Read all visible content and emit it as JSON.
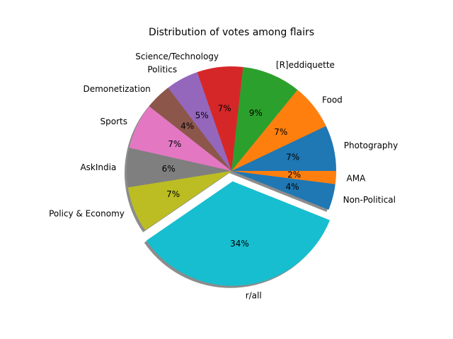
{
  "chart_data": {
    "type": "pie",
    "title": "Distribution of votes among flairs",
    "start_angle_deg": 0,
    "direction": "counterclockwise",
    "shadow": true,
    "explode": {
      "r/all": 0.1
    },
    "slices": [
      {
        "label": "Photography",
        "value": 7,
        "pct_label": "7%",
        "color": "#1f77b4"
      },
      {
        "label": "Food",
        "value": 7,
        "pct_label": "7%",
        "color": "#ff7f0e"
      },
      {
        "label": "[R]eddiquette",
        "value": 9,
        "pct_label": "9%",
        "color": "#2ca02c"
      },
      {
        "label": "Science/Technology",
        "value": 7,
        "pct_label": "7%",
        "color": "#d62728"
      },
      {
        "label": "Politics",
        "value": 5,
        "pct_label": "5%",
        "color": "#9467bd"
      },
      {
        "label": "Demonetization",
        "value": 4,
        "pct_label": "4%",
        "color": "#8c564b"
      },
      {
        "label": "Sports",
        "value": 7,
        "pct_label": "7%",
        "color": "#e377c2"
      },
      {
        "label": "AskIndia",
        "value": 6,
        "pct_label": "6%",
        "color": "#7f7f7f"
      },
      {
        "label": "Policy & Economy",
        "value": 7,
        "pct_label": "7%",
        "color": "#bcbd22"
      },
      {
        "label": "r/all",
        "value": 34,
        "pct_label": "34%",
        "color": "#17becf"
      },
      {
        "label": "Non-Political",
        "value": 4,
        "pct_label": "4%",
        "color": "#1f77b4"
      },
      {
        "label": "AMA",
        "value": 2,
        "pct_label": "2%",
        "color": "#ff7f0e"
      }
    ]
  }
}
